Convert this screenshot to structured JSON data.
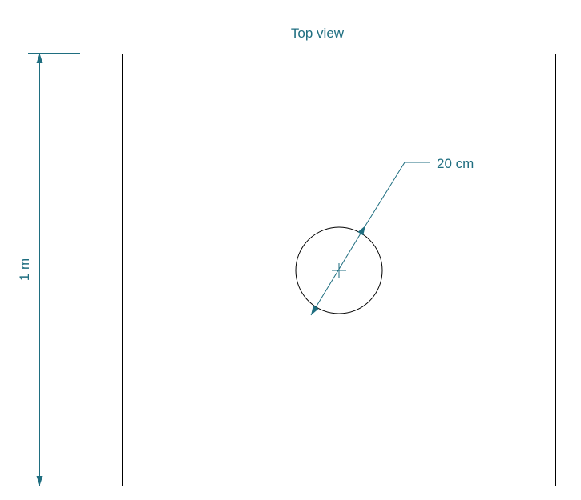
{
  "diagram": {
    "title": "Top view",
    "height_dimension": "1 m",
    "diameter_dimension": "20 cm",
    "colors": {
      "dimension": "#1f6e80",
      "outline": "#000000",
      "background": "#ffffff"
    }
  }
}
